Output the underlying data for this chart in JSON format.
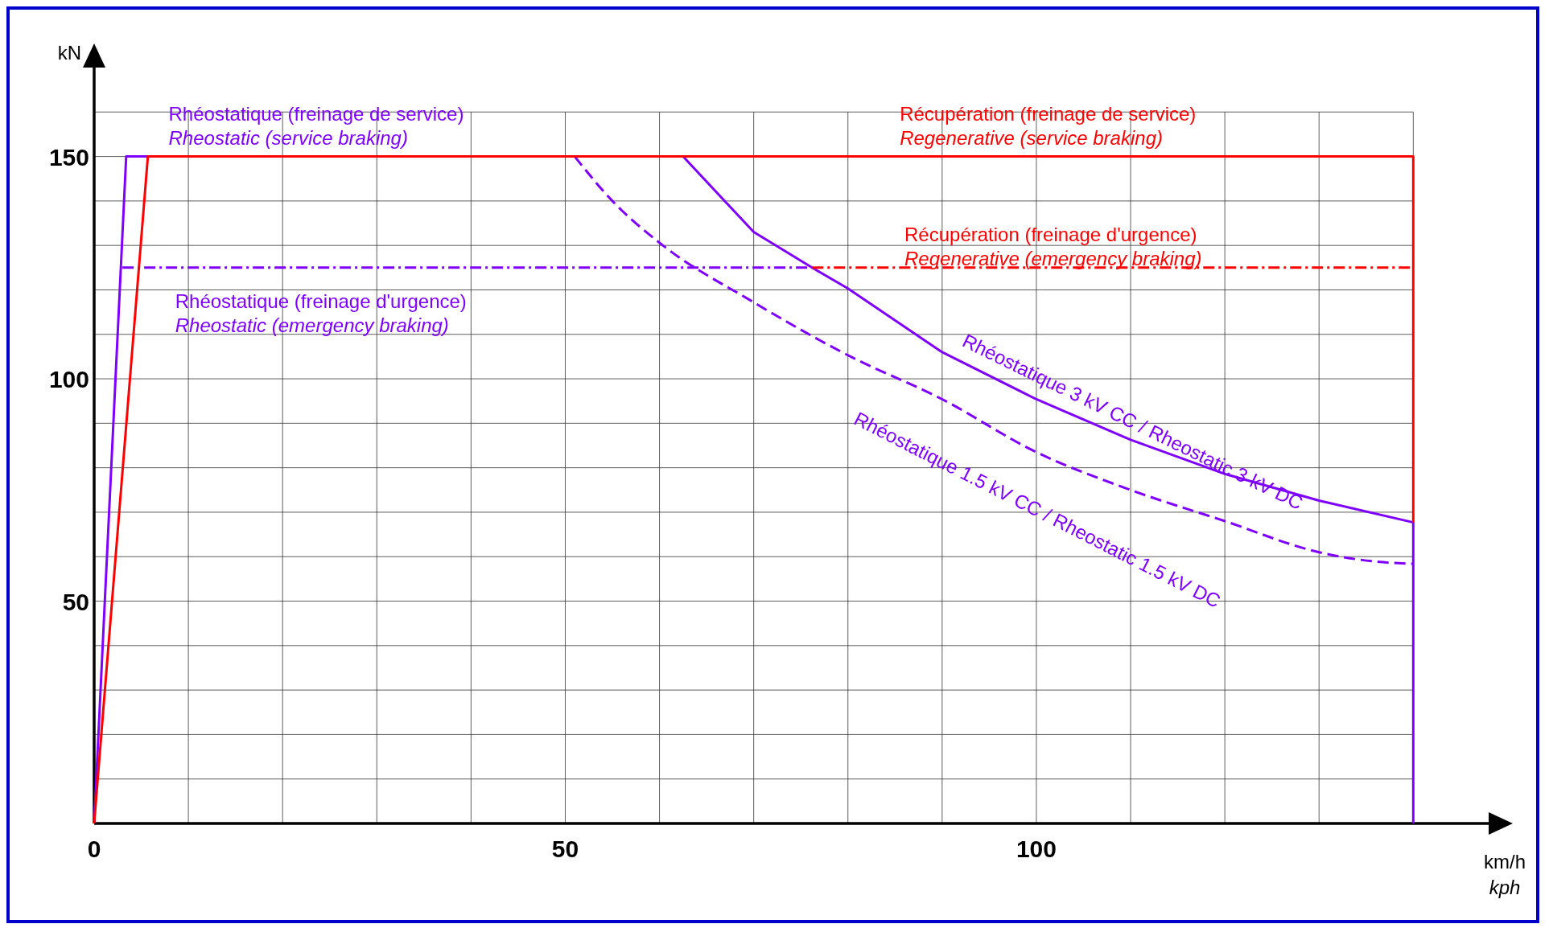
{
  "chart_data": {
    "type": "line",
    "xlabel": "km/h\nkph",
    "ylabel": "kN",
    "xlim": [
      0,
      148
    ],
    "ylim": [
      0,
      170
    ],
    "xticks": [
      0,
      {
        "value": 10,
        "label": null
      },
      {
        "value": 20,
        "label": null
      },
      {
        "value": 30,
        "label": null
      },
      {
        "value": 40,
        "label": null
      },
      50,
      {
        "value": 60,
        "label": null
      },
      {
        "value": 70,
        "label": null
      },
      {
        "value": 80,
        "label": null
      },
      {
        "value": 90,
        "label": null
      },
      100,
      {
        "value": 110,
        "label": null
      },
      {
        "value": 120,
        "label": null
      },
      {
        "value": 130,
        "label": null
      },
      {
        "value": 140,
        "label": null
      }
    ],
    "yticks": [
      {
        "value": 0,
        "label": null
      },
      {
        "value": 10,
        "label": null
      },
      {
        "value": 20,
        "label": null
      },
      {
        "value": 30,
        "label": null
      },
      {
        "value": 40,
        "label": null
      },
      50,
      {
        "value": 60,
        "label": null
      },
      {
        "value": 70,
        "label": null
      },
      {
        "value": 80,
        "label": null
      },
      {
        "value": 90,
        "label": null
      },
      100,
      {
        "value": 110,
        "label": null
      },
      {
        "value": 120,
        "label": null
      },
      {
        "value": 130,
        "label": null
      },
      {
        "value": 140,
        "label": null
      },
      150,
      {
        "value": 160,
        "label": null
      }
    ],
    "grid": true,
    "marker": "none",
    "series": [
      {
        "name": "Rhéostatique (freinage de service)\nRheostatic (service braking)",
        "color": "#7f00ff",
        "line_style": "solid",
        "x": [
          0,
          3.4,
          62.5
        ],
        "values": [
          0,
          150,
          150
        ]
      },
      {
        "name": "Rhéostatique (freinage d'urgence)\nRheostatic (emergency braking)",
        "color": "#7f00ff",
        "line_style": "dashdot",
        "x": [
          3,
          76.2
        ],
        "values": [
          125,
          125
        ]
      },
      {
        "name": "Rhéostatique 3 kV CC / Rheostatic 3 kV DC",
        "color": "#7f00ff",
        "line_style": "solid",
        "x": [
          62.5,
          70,
          76.2,
          80,
          90,
          100,
          110,
          120,
          130,
          140,
          140
        ],
        "values": [
          150,
          133,
          125,
          120.3,
          106,
          95.4,
          86.3,
          78.6,
          72.6,
          67.7,
          0
        ]
      },
      {
        "name": "Rhéostatique 1.5 kV CC / Rheostatic 1.5 kV DC",
        "color": "#7f00ff",
        "line_style": "dashed",
        "x": [
          51,
          55,
          60,
          70,
          80,
          90,
          100,
          110,
          120,
          130,
          136,
          140
        ],
        "values": [
          150,
          140,
          130.6,
          117.2,
          105.3,
          95.4,
          83.5,
          75,
          68,
          61,
          58.9,
          58.4
        ]
      },
      {
        "name": "Récupération (freinage de service)\nRegenerative (service braking)",
        "color": "#ff0000",
        "line_style": "solid",
        "x": [
          0,
          5.7,
          140,
          140
        ],
        "values": [
          0,
          150,
          150,
          67.7
        ]
      },
      {
        "name": "Récupération (freinage d'urgence)\nRegenerative (emergency braking)",
        "color": "#ff0000",
        "line_style": "dashdot",
        "x": [
          76.2,
          140
        ],
        "values": [
          125,
          125
        ]
      }
    ]
  }
}
